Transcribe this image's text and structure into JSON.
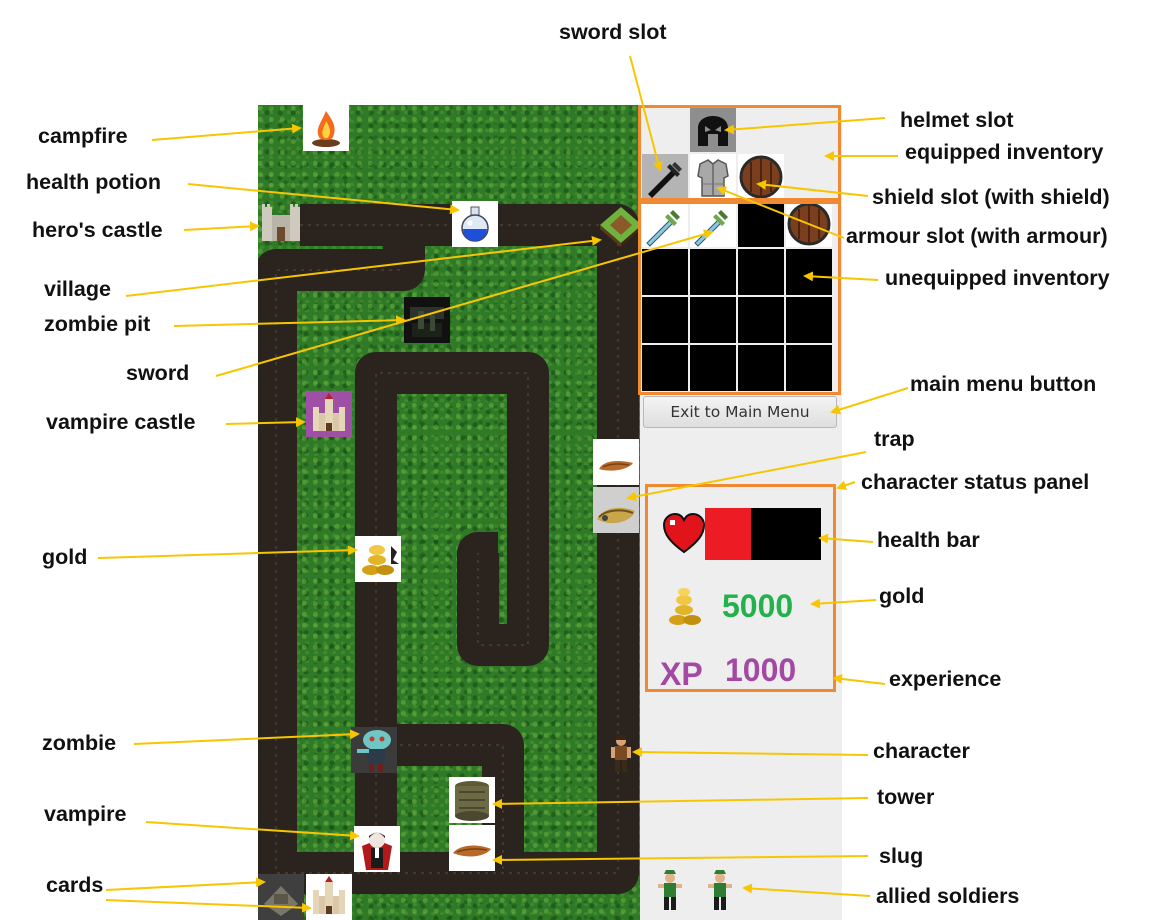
{
  "colors": {
    "annotation_arrow": "#f7c600",
    "highlight_box": "#f08a32",
    "grass": "#2f7a26",
    "path": "#2b231e",
    "gold_value": "#22b14c",
    "xp_value": "#a349a4",
    "health_fill": "#ed1c24"
  },
  "map_entities": {
    "campfire": "campfire-icon",
    "health_potion": "potion-icon",
    "heros_castle": "castle-icon",
    "village": "village-icon",
    "zombie_pit": "zombie-pit-icon",
    "vampire_castle": "vampire-castle-icon",
    "trap": "trap-icon",
    "gold": "gold-icon",
    "zombie": "zombie-icon",
    "character": "character-icon",
    "tower": "tower-icon",
    "vampire": "vampire-icon",
    "slug": "slug-icon",
    "cards": [
      "zombie-pit-card-icon",
      "vampire-castle-card-icon"
    ]
  },
  "equipped": {
    "helmet": "helmet-icon",
    "sword": "sword-icon",
    "armour": "armour-icon",
    "shield": "shield-icon"
  },
  "unequipped_row": [
    "sword-icon",
    "sword-icon",
    "empty",
    "shield-icon"
  ],
  "exit_button": {
    "label": "Exit to Main Menu"
  },
  "status": {
    "health_fraction": 0.4,
    "gold": "5000",
    "xp_label": "XP",
    "xp": "1000"
  },
  "allied_soldiers": 2,
  "annotations": {
    "sword_slot": "sword slot",
    "campfire": "campfire",
    "helmet_slot": "helmet slot",
    "equipped_inventory": "equipped inventory",
    "health_potion": "health potion",
    "shield_slot": "shield slot (with shield)",
    "heros_castle": "hero's castle",
    "armour_slot": "armour slot (with armour)",
    "unequipped_inventory": "unequipped inventory",
    "village": "village",
    "zombie_pit": "zombie pit",
    "sword": "sword",
    "main_menu_button": "main menu button",
    "vampire_castle": "vampire castle",
    "trap": "trap",
    "character_status_panel": "character status panel",
    "health_bar": "health bar",
    "gold_left": "gold",
    "gold_right": "gold",
    "experience": "experience",
    "zombie": "zombie",
    "character": "character",
    "tower": "tower",
    "vampire": "vampire",
    "slug": "slug",
    "cards": "cards",
    "allied_soldiers": "allied soldiers"
  }
}
